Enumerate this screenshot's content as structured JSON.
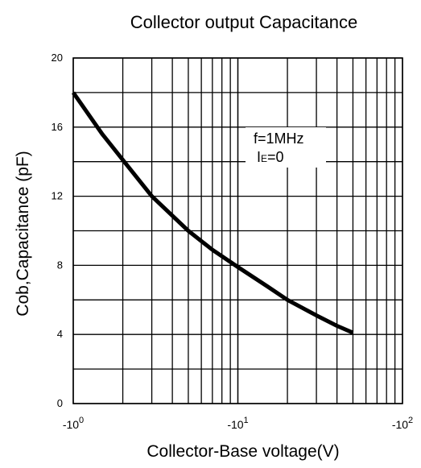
{
  "chart_data": {
    "type": "line",
    "title": "Collector output Capacitance",
    "xlabel": "Collector-Base voltage(V)",
    "ylabel": "Cob,Capacitance (pF)",
    "x_scale": "log",
    "xlim": [
      1,
      100
    ],
    "ylim": [
      0,
      20
    ],
    "x_ticks": [
      {
        "base": "-10",
        "exp": "0"
      },
      {
        "base": "-10",
        "exp": "1"
      },
      {
        "base": "-10",
        "exp": "2"
      }
    ],
    "y_ticks": [
      "0",
      "4",
      "8",
      "12",
      "16",
      "20"
    ],
    "grid": true,
    "annotations": [
      {
        "text": "f=1MHz"
      },
      {
        "prefix": "I",
        "sub": "E",
        "suffix": "=0"
      }
    ],
    "series": [
      {
        "x": [
          1,
          1.5,
          2,
          3,
          5,
          7,
          10,
          15,
          20,
          30,
          40,
          50
        ],
        "y": [
          18,
          15.6,
          14.1,
          12.0,
          10.0,
          8.9,
          7.9,
          6.8,
          6.0,
          5.1,
          4.5,
          4.1
        ]
      }
    ]
  }
}
